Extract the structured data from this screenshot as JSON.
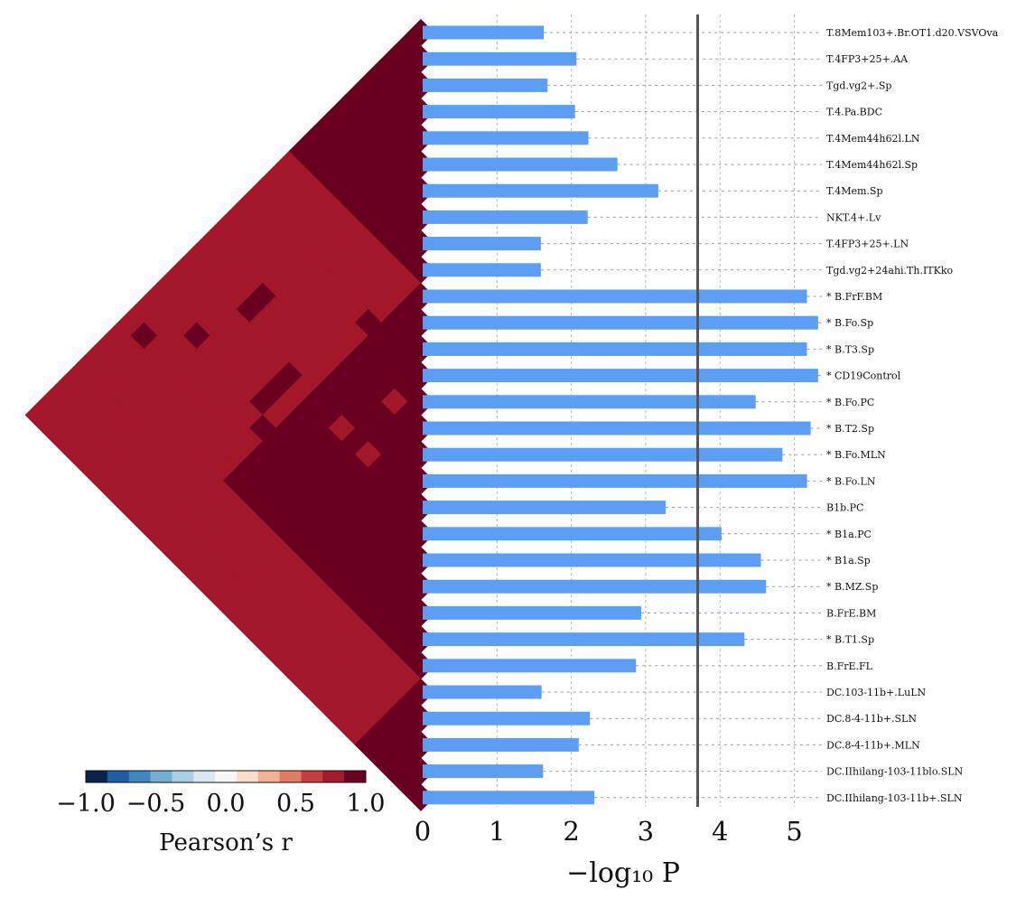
{
  "chart_data": [
    {
      "type": "bar",
      "orientation": "horizontal",
      "categories": [
        "T.8Mem103+.Br.OT1.d20.VSVOva",
        "T.4FP3+25+.AA",
        "Tgd.vg2+.Sp",
        "T.4.Pa.BDC",
        "T.4Mem44h62l.LN",
        "T.4Mem44h62l.Sp",
        "T.4Mem.Sp",
        "NKT.4+.Lv",
        "T.4FP3+25+.LN",
        "Tgd.vg2+24ahi.Th.ITKko",
        "* B.FrF.BM",
        "* B.Fo.Sp",
        "* B.T3.Sp",
        "* CD19Control",
        "* B.Fo.PC",
        "* B.T2.Sp",
        "* B.Fo.MLN",
        "* B.Fo.LN",
        "B1b.PC",
        "* B1a.PC",
        "* B1a.Sp",
        "* B.MZ.Sp",
        "B.FrE.BM",
        "* B.T1.Sp",
        "B.FrE.FL",
        "DC.103-11b+.LuLN",
        "DC.8-4-11b+.SLN",
        "DC.8-4-11b+.MLN",
        "DC.IIhilang-103-11blo.SLN",
        "DC.IIhilang-103-11b+.SLN"
      ],
      "values": [
        1.63,
        2.07,
        1.68,
        2.05,
        2.23,
        2.62,
        3.17,
        2.22,
        1.59,
        1.59,
        5.17,
        5.32,
        5.17,
        5.32,
        4.48,
        5.22,
        4.84,
        5.17,
        3.27,
        4.02,
        4.55,
        4.62,
        2.94,
        4.33,
        2.87,
        1.6,
        2.25,
        2.1,
        1.62,
        2.31
      ],
      "xlim": [
        0,
        5.5
      ],
      "xticks": [
        "0",
        "1",
        "2",
        "3",
        "4",
        "5"
      ],
      "xlabel": "−log₁₀ P",
      "threshold": 3.7,
      "bar_color": "#5b9ef4",
      "threshold_color": "#555555",
      "grid": "vertical dashed"
    },
    {
      "type": "heatmap",
      "shape": "triangular correlation matrix (30 × 30)",
      "colorbar": {
        "label": "Pearson’s r",
        "ticks": [
          "−1.0",
          "−0.5",
          "0.0",
          "0.5",
          "1.0"
        ],
        "range": [
          -1.0,
          1.0
        ],
        "colors": [
          "#08234d",
          "#1f5ea4",
          "#3d88c1",
          "#73afd3",
          "#a9cfe5",
          "#d9e8f1",
          "#f7f7f7",
          "#fbddce",
          "#f4b195",
          "#e17b61",
          "#c53e3e",
          "#a31b2b",
          "#68001f"
        ]
      },
      "groups": [
        [
          0,
          9
        ],
        [
          10,
          24
        ],
        [
          25,
          29
        ]
      ],
      "high_color": "#69001f",
      "mid_color": "#a3172a",
      "exceptions": [
        [
          13,
          9
        ],
        [
          15,
          13
        ],
        [
          18,
          8
        ],
        [
          18,
          12
        ],
        [
          19,
          8
        ],
        [
          20,
          8
        ],
        [
          21,
          9
        ],
        [
          16,
          4
        ],
        [
          17,
          4
        ],
        [
          20,
          3
        ],
        [
          22,
          1
        ],
        [
          18,
          14
        ]
      ]
    }
  ]
}
